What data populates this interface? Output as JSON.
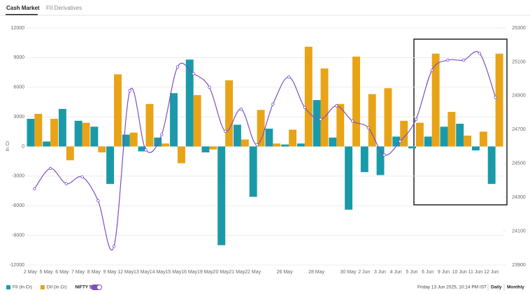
{
  "tabs": [
    "Cash Market",
    "FII Derivatives"
  ],
  "chart_data": {
    "type": "bar-line",
    "y_label": "In Cr",
    "categories": [
      "2 May",
      "5 May",
      "6 May",
      "7 May",
      "8 May",
      "9 May",
      "12 May",
      "13 May",
      "14 May",
      "15 May",
      "16 May",
      "19 May",
      "20 May",
      "21 May",
      "22 May",
      null,
      "26 May",
      null,
      "28 May",
      null,
      "30 May",
      "2 Jun",
      "3 Jun",
      "4 Jun",
      "5 Jun",
      "6 Jun",
      "9 Jun",
      "10 Jun",
      "11 Jun",
      "12 Jun"
    ],
    "series": [
      {
        "name": "FII (In Cr)",
        "color": "#1a9aa8",
        "type": "bar",
        "values": [
          2800,
          500,
          3800,
          2600,
          2000,
          -3800,
          1200,
          -500,
          900,
          5400,
          8800,
          -600,
          -10000,
          2200,
          -5100,
          1800,
          200,
          300,
          4700,
          900,
          -6400,
          -2600,
          -2900,
          1000,
          -200,
          1000,
          2000,
          2300,
          -400,
          -3800
        ]
      },
      {
        "name": "DII (In Cr)",
        "color": "#e8a317",
        "type": "bar",
        "values": [
          3300,
          2800,
          -1400,
          2400,
          -600,
          7300,
          1400,
          4300,
          300,
          -1700,
          5200,
          -300,
          6700,
          700,
          3700,
          300,
          1700,
          10100,
          7900,
          4300,
          9100,
          5300,
          5900,
          2600,
          2400,
          9400,
          3500,
          1100,
          1500,
          9400
        ]
      },
      {
        "name": "NIFTY 50",
        "color": "#7b4fc4",
        "type": "line",
        "axis": "y2",
        "values": [
          24350,
          24470,
          24380,
          24420,
          24280,
          24010,
          24930,
          24580,
          24670,
          25070,
          25030,
          24950,
          24690,
          24820,
          24610,
          24850,
          25010,
          24830,
          24760,
          24840,
          24750,
          24710,
          24550,
          24630,
          24760,
          25050,
          25110,
          25110,
          25150,
          24890
        ]
      }
    ],
    "ylim": [
      -12000,
      12000
    ],
    "yticks": [
      -12000,
      -9000,
      -6000,
      -3000,
      0,
      3000,
      6000,
      9000,
      12000
    ],
    "y2lim": [
      23900,
      25300
    ],
    "y2ticks": [
      23900,
      24100,
      24300,
      24500,
      24700,
      24900,
      25100,
      25300
    ],
    "grid": true
  },
  "footer": {
    "timestamp": "Friday 13 Jun 2025, 10:14 PM IST",
    "options": [
      "Daily",
      "Monthly"
    ]
  }
}
